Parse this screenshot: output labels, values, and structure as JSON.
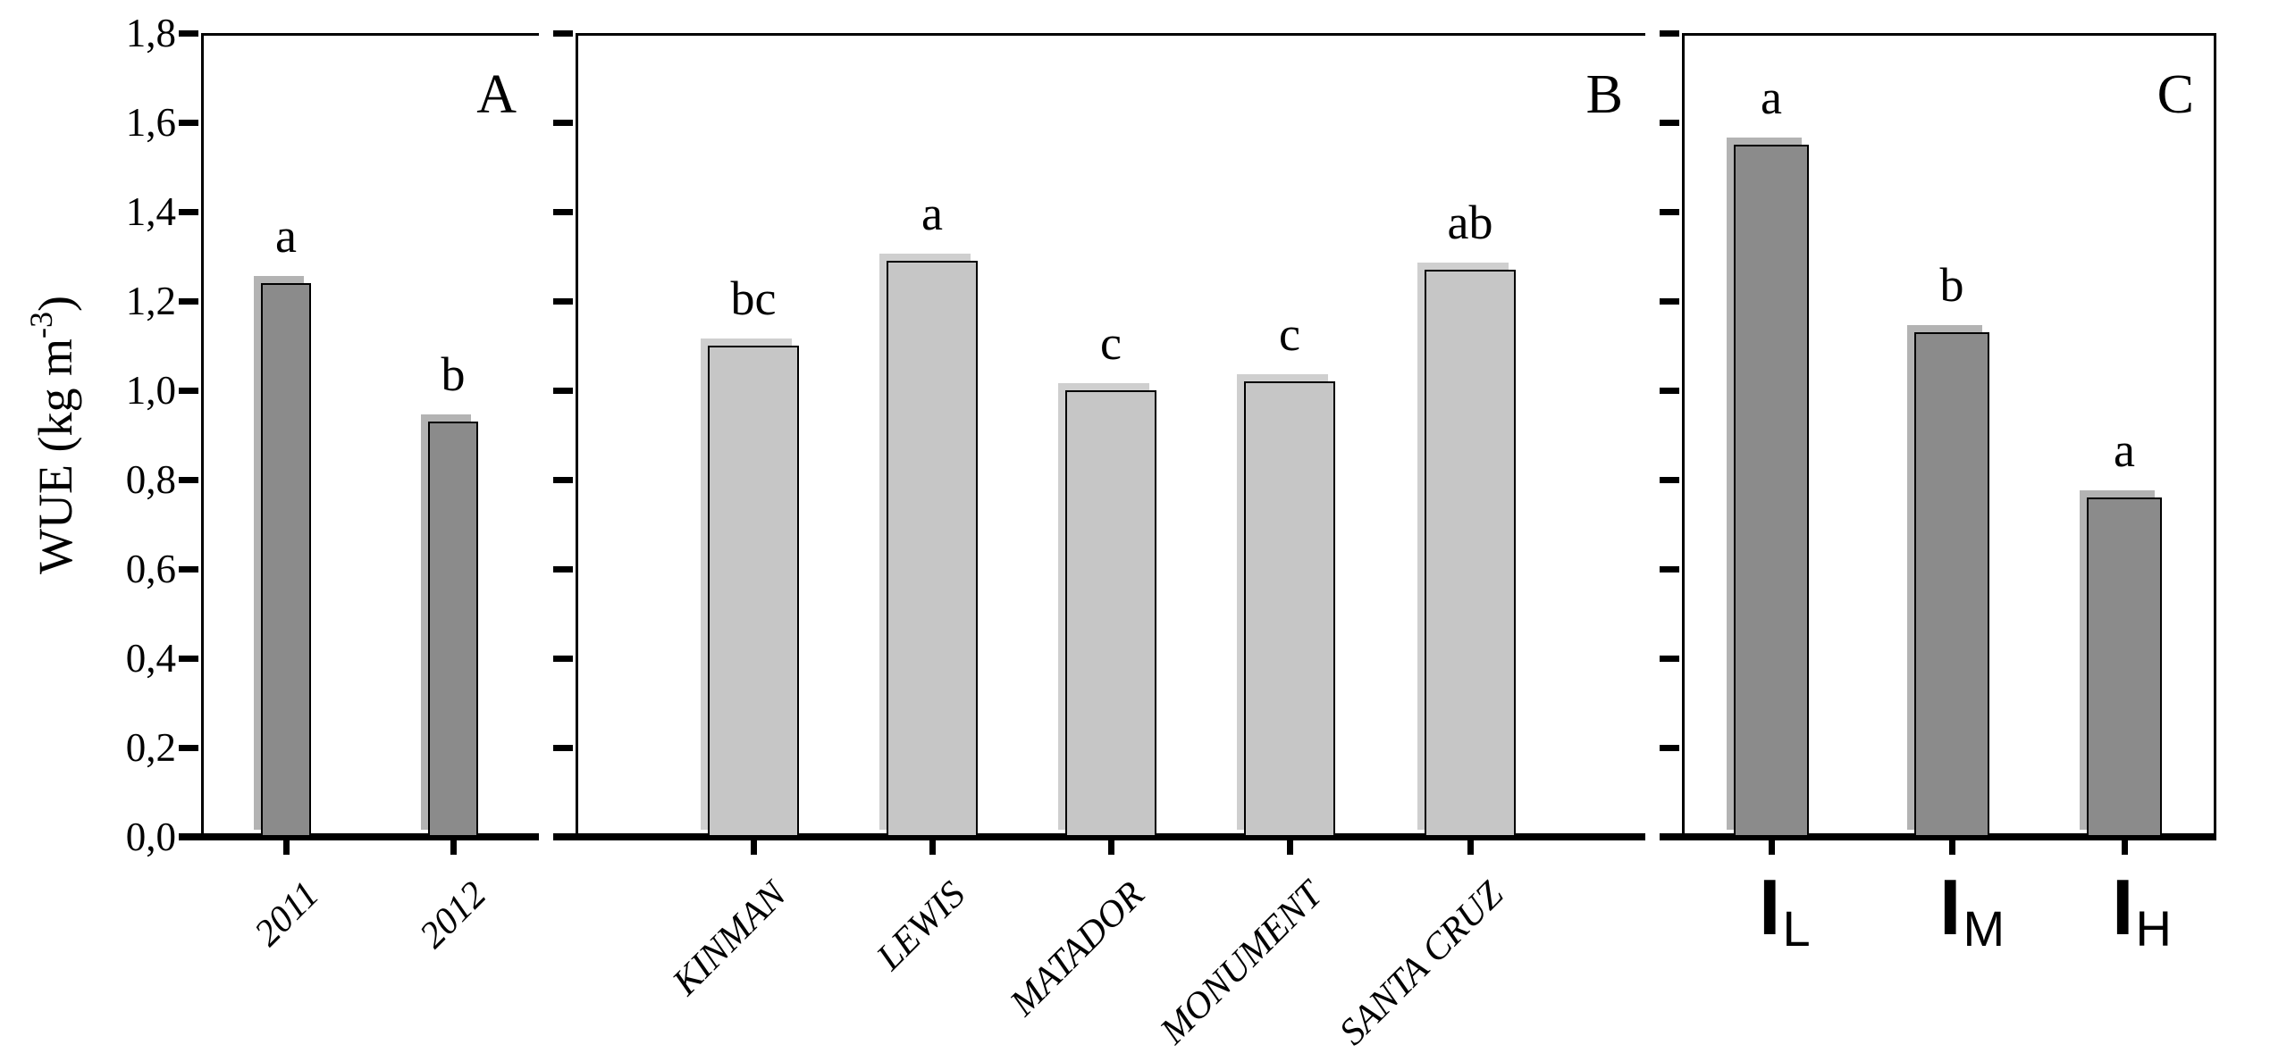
{
  "figure": {
    "background": "#ffffff",
    "axis_color": "#000000",
    "y_axis": {
      "label_prefix": "WUE (kg m",
      "label_sup": "-3",
      "label_suffix": ")",
      "ticks": [
        "0,0",
        "0,2",
        "0,4",
        "0,6",
        "0,8",
        "1,0",
        "1,2",
        "1,4",
        "1,6",
        "1,8"
      ],
      "range": [
        0,
        1.8
      ],
      "tick_step": 0.2
    },
    "chart_data": [
      {
        "type": "bar",
        "panel_label": "A",
        "categories": [
          "2011",
          "2012"
        ],
        "values": [
          1.24,
          0.93
        ],
        "sig_letters": [
          "a",
          "b"
        ],
        "bar_color": "#8b8b8b",
        "bar_cap_color": "#b3b3b3",
        "label_style": "rotated-italic",
        "ylabel": "WUE (kg m-3)",
        "ylim": [
          0,
          1.8
        ]
      },
      {
        "type": "bar",
        "panel_label": "B",
        "categories": [
          "KINMAN",
          "LEWIS",
          "MATADOR",
          "MONUMENT",
          "SANTA CRUZ"
        ],
        "values": [
          1.1,
          1.29,
          1.0,
          1.02,
          1.27
        ],
        "sig_letters": [
          "bc",
          "a",
          "c",
          "c",
          "ab"
        ],
        "bar_color": "#c6c6c6",
        "bar_cap_color": "#cfcfcf",
        "label_style": "rotated-italic",
        "ylim": [
          0,
          1.8
        ]
      },
      {
        "type": "bar",
        "panel_label": "C",
        "categories": [
          {
            "base": "I",
            "sub": "L"
          },
          {
            "base": "I",
            "sub": "M"
          },
          {
            "base": "I",
            "sub": "H"
          }
        ],
        "values": [
          1.55,
          1.13,
          0.76
        ],
        "sig_letters": [
          "a",
          "b",
          "a"
        ],
        "bar_color": "#8b8b8b",
        "bar_cap_color": "#b3b3b3",
        "label_style": "subscript",
        "ylim": [
          0,
          1.8
        ]
      }
    ]
  }
}
